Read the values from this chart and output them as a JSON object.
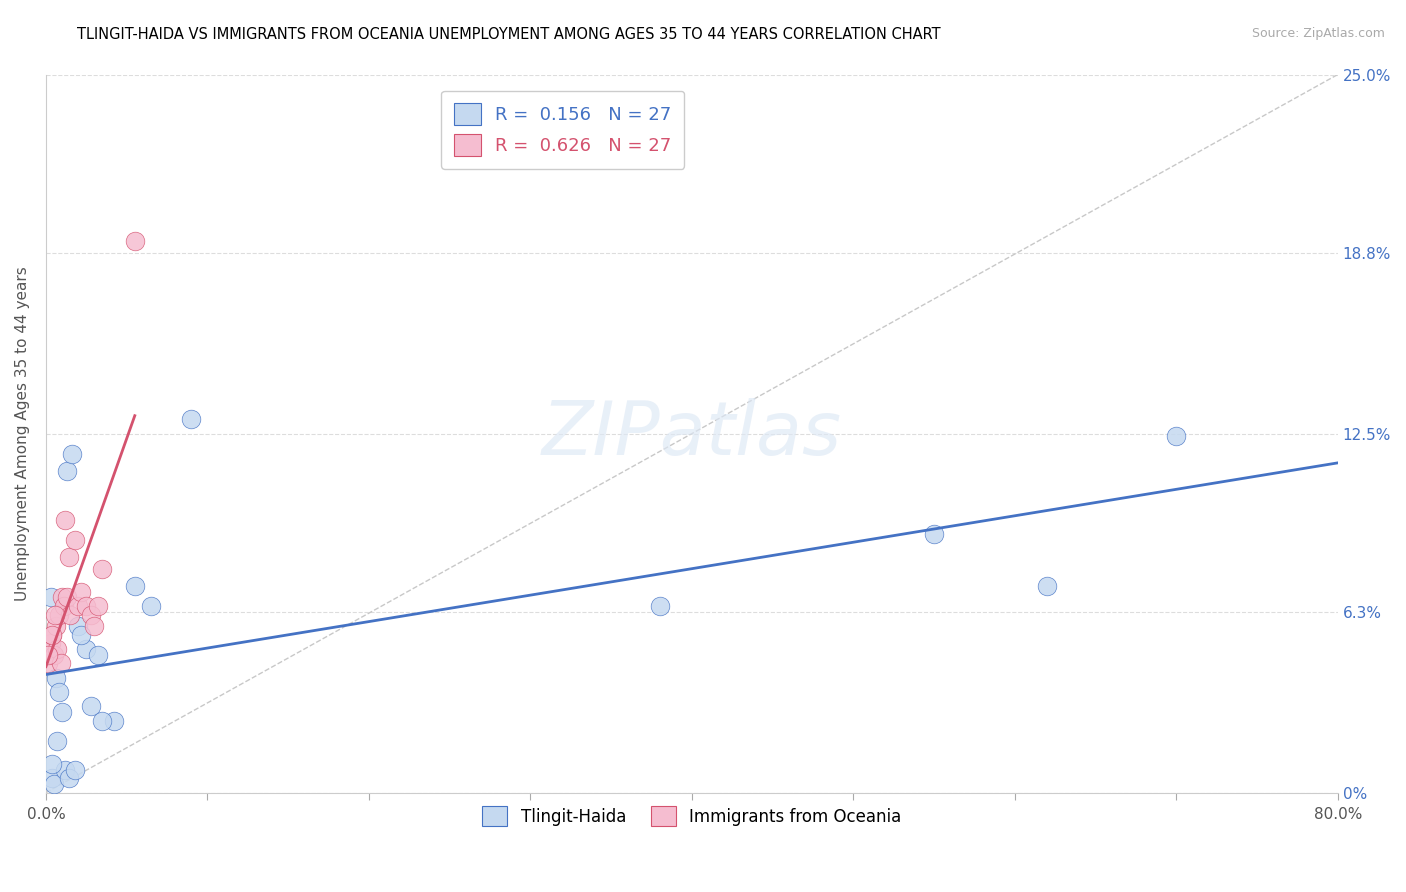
{
  "title": "TLINGIT-HAIDA VS IMMIGRANTS FROM OCEANIA UNEMPLOYMENT AMONG AGES 35 TO 44 YEARS CORRELATION CHART",
  "source": "Source: ZipAtlas.com",
  "ylabel": "Unemployment Among Ages 35 to 44 years",
  "ytick_labels": [
    "0%",
    "6.3%",
    "12.5%",
    "18.8%",
    "25.0%"
  ],
  "ytick_values": [
    0,
    6.3,
    12.5,
    18.8,
    25.0
  ],
  "xlim": [
    0,
    80
  ],
  "ylim": [
    0,
    25
  ],
  "r1": "0.156",
  "r2": "0.626",
  "n1": "27",
  "n2": "27",
  "series1_fill": "#c5d9f0",
  "series2_fill": "#f5bdd0",
  "line1_color": "#4472c4",
  "line2_color": "#d4526e",
  "diag_color": "#c8c8c8",
  "tlingit_x": [
    0.4,
    0.5,
    1.2,
    1.4,
    1.8,
    2.0,
    2.5,
    3.2,
    4.2,
    5.5,
    0.3,
    0.6,
    0.8,
    1.0,
    1.3,
    1.6,
    2.2,
    2.8,
    3.5,
    6.5,
    9.0,
    55.0,
    62.0,
    70.0,
    38.0,
    0.35,
    0.7
  ],
  "tlingit_y": [
    0.5,
    0.3,
    0.8,
    0.5,
    0.8,
    5.8,
    5.0,
    4.8,
    2.5,
    7.2,
    6.8,
    4.0,
    3.5,
    2.8,
    11.2,
    11.8,
    5.5,
    3.0,
    2.5,
    6.5,
    13.0,
    9.0,
    7.2,
    12.4,
    6.5,
    1.0,
    1.8
  ],
  "oceania_x": [
    0.1,
    0.2,
    0.3,
    0.4,
    0.5,
    0.6,
    0.7,
    0.8,
    0.9,
    1.0,
    1.1,
    1.2,
    1.3,
    1.4,
    1.5,
    1.8,
    2.0,
    2.2,
    2.5,
    2.8,
    3.0,
    3.2,
    3.5,
    0.15,
    0.35,
    0.55,
    5.5
  ],
  "oceania_y": [
    4.5,
    5.0,
    5.2,
    5.5,
    4.8,
    5.8,
    5.0,
    6.2,
    4.5,
    6.8,
    6.5,
    9.5,
    6.8,
    8.2,
    6.2,
    8.8,
    6.5,
    7.0,
    6.5,
    6.2,
    5.8,
    6.5,
    7.8,
    4.8,
    5.5,
    6.2,
    19.2
  ]
}
